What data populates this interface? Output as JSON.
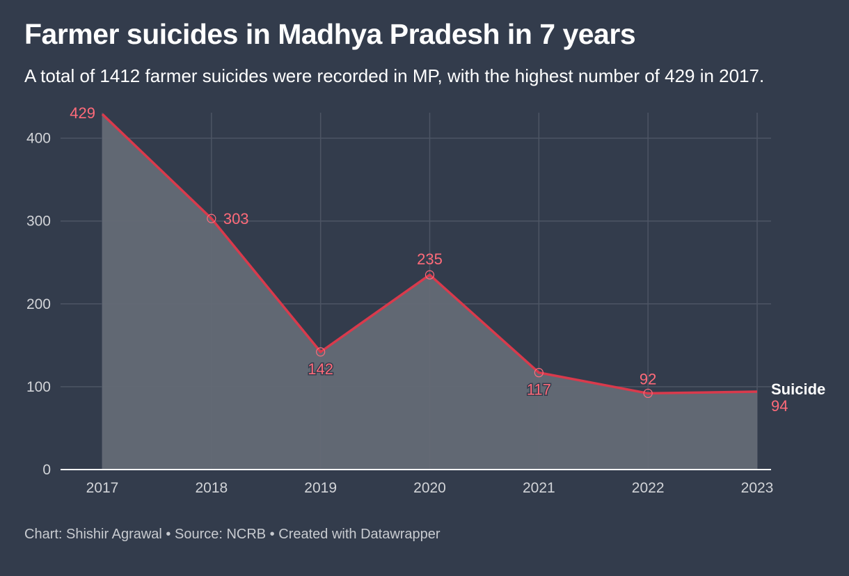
{
  "header": {
    "title": "Farmer suicides in Madhya Pradesh in 7 years",
    "subtitle": "A total of 1412 farmer suicides were recorded in MP, with the highest number of 429 in 2017."
  },
  "footer": {
    "text": "Chart: Shishir Agrawal • Source: NCRB • Created with Datawrapper"
  },
  "colors": {
    "background": "#333c4c",
    "line": "#d93a4c",
    "area": "#646a75",
    "label": "#ff6b7a",
    "grid": "#4d5564"
  },
  "chart_data": {
    "type": "area",
    "title": "Farmer suicides in Madhya Pradesh in 7 years",
    "xlabel": "",
    "ylabel": "",
    "x": [
      "2017",
      "2018",
      "2019",
      "2020",
      "2021",
      "2022",
      "2023"
    ],
    "series": [
      {
        "name": "Suicide",
        "values": [
          429,
          303,
          142,
          235,
          117,
          92,
          94
        ]
      }
    ],
    "ylim": [
      0,
      400
    ],
    "yticks": [
      0,
      100,
      200,
      300,
      400
    ],
    "grid": true,
    "legend": "direct label at right end of line"
  }
}
